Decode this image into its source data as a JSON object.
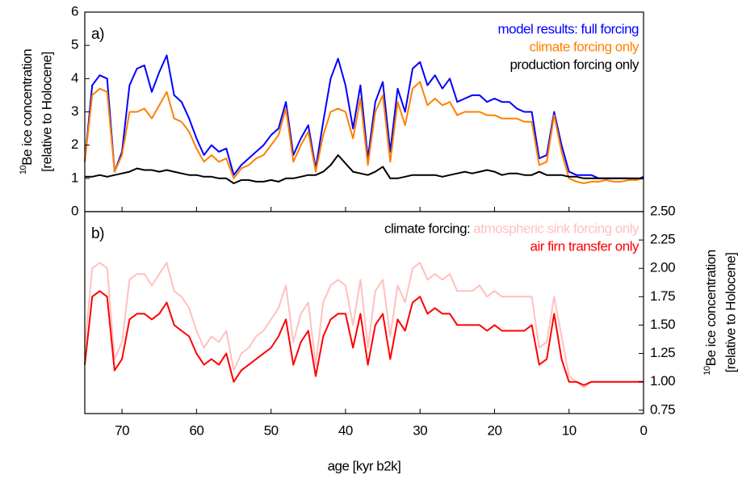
{
  "chart_data": [
    {
      "type": "line",
      "panel_label": "a)",
      "y_label_superscript": "10",
      "y_label": "Be ice concentration",
      "y_label_2": "[relative to Holocene]",
      "y_axis_side": "left",
      "xlim": [
        75,
        0
      ],
      "xticks": [
        70,
        60,
        50,
        40,
        30,
        20,
        10,
        0
      ],
      "ylim": [
        0,
        6
      ],
      "yticks": [
        0,
        1,
        2,
        3,
        4,
        5,
        6
      ],
      "x": [
        75,
        74,
        73,
        72,
        71,
        70,
        69,
        68,
        67,
        66,
        65,
        64,
        63,
        62,
        61,
        60,
        59,
        58,
        57,
        56,
        55,
        54,
        53,
        52,
        51,
        50,
        49,
        48,
        47,
        46,
        45,
        44,
        43,
        42,
        41,
        40,
        39,
        38,
        37,
        36,
        35,
        34,
        33,
        32,
        31,
        30,
        29,
        28,
        27,
        26,
        25,
        24,
        23,
        22,
        21,
        20,
        19,
        18,
        17,
        16,
        15,
        14,
        13,
        12,
        11,
        10,
        9,
        8,
        7,
        6,
        5,
        4,
        3,
        2,
        1,
        0
      ],
      "series": [
        {
          "name": "model results: full forcing",
          "color": "#0000ff",
          "values": [
            1.5,
            3.8,
            4.1,
            4.0,
            1.2,
            1.8,
            3.8,
            4.3,
            4.4,
            3.6,
            4.2,
            4.7,
            3.5,
            3.3,
            2.8,
            2.2,
            1.7,
            2.0,
            1.8,
            1.9,
            1.1,
            1.4,
            1.6,
            1.8,
            2.0,
            2.3,
            2.5,
            3.3,
            1.7,
            2.2,
            2.6,
            1.3,
            2.7,
            4.0,
            4.6,
            3.8,
            2.5,
            3.8,
            1.6,
            3.3,
            3.9,
            1.8,
            3.7,
            3.0,
            4.3,
            4.5,
            3.8,
            4.1,
            3.7,
            4.0,
            3.3,
            3.4,
            3.5,
            3.5,
            3.3,
            3.4,
            3.3,
            3.3,
            3.1,
            3.0,
            3.0,
            1.6,
            1.7,
            3.0,
            2.0,
            1.2,
            1.1,
            1.1,
            1.1,
            1.0,
            1.0,
            1.0,
            1.0,
            1.0,
            0.95,
            1.05
          ]
        },
        {
          "name": "climate forcing only",
          "color": "#ff8000",
          "values": [
            1.5,
            3.5,
            3.7,
            3.6,
            1.2,
            1.7,
            3.0,
            3.0,
            3.1,
            2.8,
            3.2,
            3.6,
            2.8,
            2.7,
            2.4,
            1.9,
            1.5,
            1.7,
            1.5,
            1.6,
            1.0,
            1.3,
            1.4,
            1.6,
            1.7,
            2.0,
            2.3,
            3.1,
            1.5,
            2.0,
            2.4,
            1.2,
            2.3,
            3.0,
            3.1,
            3.0,
            2.2,
            3.4,
            1.4,
            3.0,
            3.5,
            1.5,
            3.3,
            2.6,
            3.7,
            3.9,
            3.2,
            3.4,
            3.2,
            3.3,
            2.9,
            3.0,
            3.0,
            3.0,
            2.9,
            2.9,
            2.8,
            2.8,
            2.8,
            2.7,
            2.7,
            1.4,
            1.5,
            2.9,
            1.8,
            1.0,
            0.9,
            0.85,
            0.9,
            0.9,
            0.95,
            0.9,
            0.9,
            0.95,
            0.95,
            1.0
          ]
        },
        {
          "name": "production forcing only",
          "color": "#000000",
          "values": [
            1.05,
            1.05,
            1.1,
            1.05,
            1.1,
            1.15,
            1.2,
            1.3,
            1.25,
            1.25,
            1.2,
            1.25,
            1.2,
            1.15,
            1.1,
            1.1,
            1.05,
            1.05,
            1.0,
            1.0,
            0.85,
            0.95,
            0.95,
            0.9,
            0.9,
            0.95,
            0.9,
            1.0,
            1.0,
            1.05,
            1.1,
            1.1,
            1.2,
            1.4,
            1.7,
            1.45,
            1.2,
            1.15,
            1.1,
            1.2,
            1.35,
            1.0,
            1.0,
            1.05,
            1.1,
            1.1,
            1.1,
            1.1,
            1.05,
            1.1,
            1.15,
            1.2,
            1.15,
            1.2,
            1.25,
            1.2,
            1.1,
            1.15,
            1.15,
            1.1,
            1.1,
            1.2,
            1.1,
            1.1,
            1.1,
            1.05,
            1.05,
            1.0,
            1.0,
            1.0,
            1.0,
            1.0,
            1.0,
            1.0,
            1.0,
            1.0
          ]
        }
      ]
    },
    {
      "type": "line",
      "panel_label": "b)",
      "x_label": "age [kyr b2k]",
      "legend_title": "climate forcing:",
      "y_label_superscript": "10",
      "y_label": "Be ice concentration",
      "y_label_2": "[relative to Holocene]",
      "y_axis_side": "right",
      "xlim": [
        75,
        0
      ],
      "xticks": [
        70,
        60,
        50,
        40,
        30,
        20,
        10,
        0
      ],
      "ylim": [
        0.72,
        2.5
      ],
      "yticks": [
        0.75,
        {
          "value": 1,
          "label": "1.00"
        },
        1.25,
        {
          "value": 1.5,
          "label": "1.50"
        },
        1.75,
        {
          "value": 2,
          "label": "2.00"
        },
        2.25,
        {
          "value": 2.5,
          "label": "2.50"
        }
      ],
      "x": [
        75,
        74,
        73,
        72,
        71,
        70,
        69,
        68,
        67,
        66,
        65,
        64,
        63,
        62,
        61,
        60,
        59,
        58,
        57,
        56,
        55,
        54,
        53,
        52,
        51,
        50,
        49,
        48,
        47,
        46,
        45,
        44,
        43,
        42,
        41,
        40,
        39,
        38,
        37,
        36,
        35,
        34,
        33,
        32,
        31,
        30,
        29,
        28,
        27,
        26,
        25,
        24,
        23,
        22,
        21,
        20,
        19,
        18,
        17,
        16,
        15,
        14,
        13,
        12,
        11,
        10,
        9,
        8,
        7,
        6,
        5,
        4,
        3,
        2,
        1,
        0
      ],
      "series": [
        {
          "name": "atmospheric sink forcing only",
          "color": "#ffc0c0",
          "values": [
            1.3,
            2.0,
            2.05,
            2.0,
            1.2,
            1.35,
            1.9,
            1.95,
            1.95,
            1.85,
            1.95,
            2.05,
            1.8,
            1.75,
            1.65,
            1.45,
            1.3,
            1.4,
            1.35,
            1.45,
            1.1,
            1.25,
            1.3,
            1.4,
            1.45,
            1.55,
            1.65,
            1.85,
            1.35,
            1.6,
            1.7,
            1.15,
            1.7,
            1.85,
            1.9,
            1.85,
            1.5,
            1.9,
            1.3,
            1.8,
            1.9,
            1.4,
            1.85,
            1.7,
            2.0,
            2.05,
            1.9,
            1.95,
            1.9,
            1.95,
            1.8,
            1.8,
            1.8,
            1.85,
            1.75,
            1.8,
            1.75,
            1.75,
            1.75,
            1.75,
            1.75,
            1.3,
            1.35,
            1.75,
            1.4,
            1.05,
            1.0,
            0.95,
            1.0,
            1.0,
            1.0,
            1.0,
            1.0,
            1.0,
            1.0,
            1.0
          ]
        },
        {
          "name": "air firn transfer only",
          "color": "#ff0000",
          "values": [
            1.15,
            1.75,
            1.8,
            1.75,
            1.1,
            1.2,
            1.55,
            1.6,
            1.6,
            1.55,
            1.6,
            1.7,
            1.5,
            1.45,
            1.4,
            1.25,
            1.15,
            1.2,
            1.15,
            1.25,
            1.0,
            1.1,
            1.15,
            1.2,
            1.25,
            1.3,
            1.4,
            1.55,
            1.15,
            1.35,
            1.45,
            1.05,
            1.4,
            1.55,
            1.6,
            1.6,
            1.3,
            1.6,
            1.15,
            1.5,
            1.6,
            1.2,
            1.55,
            1.45,
            1.7,
            1.75,
            1.6,
            1.65,
            1.6,
            1.6,
            1.5,
            1.5,
            1.5,
            1.5,
            1.45,
            1.5,
            1.45,
            1.45,
            1.45,
            1.45,
            1.5,
            1.15,
            1.2,
            1.6,
            1.2,
            1.0,
            1.0,
            0.97,
            1.0,
            1.0,
            1.0,
            1.0,
            1.0,
            1.0,
            1.0,
            1.0
          ]
        }
      ]
    }
  ]
}
